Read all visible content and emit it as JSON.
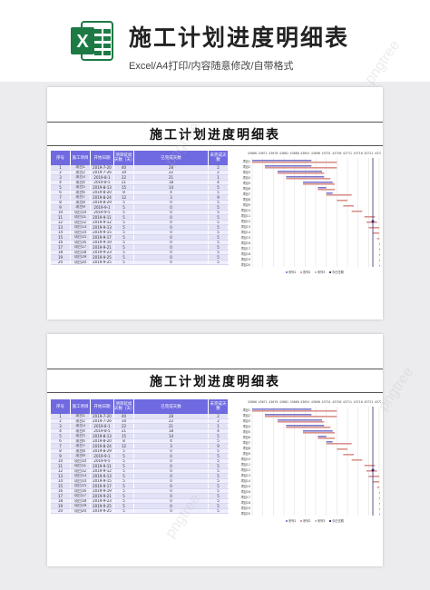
{
  "header": {
    "title": "施工计划进度明细表",
    "subtitle": "Excel/A4打印/内容随意修改/自带格式",
    "logo_letter": "X"
  },
  "sheets": [
    {
      "title": "施工计划进度明细表",
      "columns": [
        "序号",
        "施工项目",
        "开始日期",
        "项目延续天数（天）",
        "已完成天数",
        "未完成天数"
      ],
      "rows": [
        [
          "1",
          "项目1",
          "2019-7-20",
          "40",
          "28",
          "2"
        ],
        [
          "2",
          "项目2",
          "2019-7-26",
          "34",
          "22",
          "2"
        ],
        [
          "3",
          "项目3",
          "2019-8-1",
          "22",
          "21",
          "1"
        ],
        [
          "4",
          "项目4",
          "2019-8-5",
          "21",
          "18",
          "4"
        ],
        [
          "5",
          "项目5",
          "2019-8-13",
          "15",
          "14",
          "5"
        ],
        [
          "6",
          "项目6",
          "2019-8-20",
          "8",
          "4",
          "5"
        ],
        [
          "7",
          "项目7",
          "2019-8-24",
          "12",
          "3",
          "9"
        ],
        [
          "8",
          "项目8",
          "2019-8-29",
          "5",
          "0",
          "5"
        ],
        [
          "9",
          "项目9",
          "2019-9-1",
          "5",
          "0",
          "5"
        ],
        [
          "10",
          "项目10",
          "2019-9-5",
          "5",
          "0",
          "5"
        ],
        [
          "11",
          "项目11",
          "2019-9-11",
          "5",
          "0",
          "5"
        ],
        [
          "12",
          "项目12",
          "2019-9-12",
          "5",
          "0",
          "5"
        ],
        [
          "13",
          "项目13",
          "2019-9-13",
          "5",
          "0",
          "5"
        ],
        [
          "14",
          "项目14",
          "2019-9-15",
          "5",
          "0",
          "5"
        ],
        [
          "15",
          "项目15",
          "2019-9-17",
          "5",
          "0",
          "5"
        ],
        [
          "16",
          "项目16",
          "2019-9-19",
          "5",
          "0",
          "5"
        ],
        [
          "17",
          "项目17",
          "2019-9-21",
          "5",
          "0",
          "5"
        ],
        [
          "18",
          "项目18",
          "2019-9-23",
          "5",
          "0",
          "5"
        ],
        [
          "19",
          "项目19",
          "2019-9-25",
          "5",
          "0",
          "5"
        ],
        [
          "20",
          "项目20",
          "2019-9-25",
          "5",
          "0",
          "5"
        ]
      ],
      "gantt_axis": [
        "43666",
        "43671",
        "43676",
        "43681",
        "43686",
        "43691",
        "43696",
        "43701",
        "43706",
        "43711",
        "43716",
        "43721",
        "43726"
      ],
      "gantt_labels": [
        "项目1",
        "项目2",
        "项目3",
        "项目4",
        "项目5",
        "项目6",
        "项目7",
        "项目8",
        "项目9",
        "项目10",
        "项目11",
        "项目12",
        "项目13",
        "项目14",
        "项目15",
        "项目16",
        "项目17",
        "项目18",
        "项目19",
        "项目20"
      ],
      "gantt_starts": [
        43666,
        43672,
        43678,
        43682,
        43690,
        43697,
        43701,
        43706,
        43709,
        43713,
        43719,
        43720,
        43721,
        43723,
        43725,
        43727,
        43729,
        43731,
        43733,
        43733
      ],
      "legend": [
        "系列1",
        "系列2",
        "系列3",
        "今日日期"
      ]
    },
    {
      "title": "施工计划进度明细表",
      "columns": [
        "序号",
        "施工项目",
        "开始日期",
        "项目延续天数（天）",
        "已完成天数",
        "未完成天数"
      ],
      "rows": [
        [
          "1",
          "项目1",
          "2019-7-20",
          "40",
          "28",
          "2"
        ],
        [
          "2",
          "项目2",
          "2019-7-26",
          "34",
          "22",
          "2"
        ],
        [
          "3",
          "项目3",
          "2019-8-1",
          "22",
          "21",
          "1"
        ],
        [
          "4",
          "项目4",
          "2019-8-5",
          "21",
          "18",
          "4"
        ],
        [
          "5",
          "项目5",
          "2019-8-13",
          "15",
          "14",
          "5"
        ],
        [
          "6",
          "项目6",
          "2019-8-20",
          "8",
          "4",
          "5"
        ],
        [
          "7",
          "项目7",
          "2019-8-24",
          "12",
          "3",
          "9"
        ],
        [
          "8",
          "项目8",
          "2019-8-29",
          "5",
          "0",
          "5"
        ],
        [
          "9",
          "项目9",
          "2019-9-1",
          "5",
          "0",
          "5"
        ],
        [
          "10",
          "项目10",
          "2019-9-5",
          "5",
          "0",
          "5"
        ],
        [
          "11",
          "项目11",
          "2019-9-11",
          "5",
          "0",
          "5"
        ],
        [
          "12",
          "项目12",
          "2019-9-12",
          "5",
          "0",
          "5"
        ],
        [
          "13",
          "项目13",
          "2019-9-13",
          "5",
          "0",
          "5"
        ],
        [
          "14",
          "项目14",
          "2019-9-15",
          "5",
          "0",
          "5"
        ],
        [
          "15",
          "项目15",
          "2019-9-17",
          "5",
          "0",
          "5"
        ],
        [
          "16",
          "项目16",
          "2019-9-19",
          "5",
          "0",
          "5"
        ],
        [
          "17",
          "项目17",
          "2019-9-21",
          "5",
          "0",
          "5"
        ],
        [
          "18",
          "项目18",
          "2019-9-23",
          "5",
          "0",
          "5"
        ],
        [
          "19",
          "项目19",
          "2019-9-25",
          "5",
          "0",
          "5"
        ],
        [
          "20",
          "项目20",
          "2019-9-25",
          "5",
          "0",
          "5"
        ]
      ],
      "gantt_axis": [
        "43666",
        "43671",
        "43676",
        "43681",
        "43686",
        "43691",
        "43696",
        "43701",
        "43706",
        "43711",
        "43716",
        "43721",
        "43726"
      ],
      "gantt_labels": [
        "项目1",
        "项目2",
        "项目3",
        "项目4",
        "项目5",
        "项目6",
        "项目7",
        "项目8",
        "项目9",
        "项目10",
        "项目11",
        "项目12",
        "项目13",
        "项目14",
        "项目15",
        "项目16",
        "项目17",
        "项目18",
        "项目19",
        "项目20"
      ],
      "gantt_starts": [
        43666,
        43672,
        43678,
        43682,
        43690,
        43697,
        43701,
        43706,
        43709,
        43713,
        43719,
        43720,
        43721,
        43723,
        43725,
        43727,
        43729,
        43731,
        43733,
        43733
      ],
      "legend": [
        "系列1",
        "系列2",
        "系列3",
        "今日日期"
      ]
    }
  ],
  "gantt_today": 43723,
  "colors": {
    "excel_green": "#1d7a45",
    "header_purple": "#6f6ae0",
    "done_bar": "#7b78c9",
    "remaining_bar": "#d9938c",
    "today_line": "#3a2a6a"
  },
  "watermark": "pngtree"
}
